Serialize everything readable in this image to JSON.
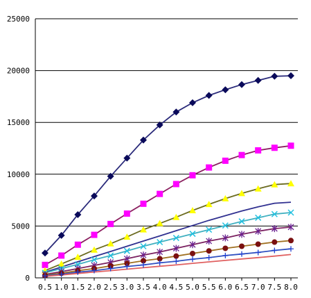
{
  "chart_data": {
    "type": "line",
    "title": "",
    "xlabel": "",
    "ylabel": "",
    "ylim": [
      0,
      25000
    ],
    "grid": "horizontal",
    "legend": "none",
    "x": [
      0.5,
      1.0,
      1.5,
      2.0,
      2.5,
      3.0,
      3.5,
      4.0,
      4.5,
      5.0,
      5.5,
      6.0,
      6.5,
      7.0,
      7.5,
      8.0
    ],
    "x_tick_labels": [
      "0.5",
      "1.0",
      "1.5",
      "2.0",
      "2.5",
      "3.0",
      "3.5",
      "4.0",
      "4.5",
      "5.0",
      "5.5",
      "6.0",
      "6.5",
      "7.0",
      "7.5",
      "8.0"
    ],
    "y_tick_labels": [
      "0",
      "5000",
      "10000",
      "15000",
      "20000",
      "25000"
    ],
    "y_ticks": [
      0,
      5000,
      10000,
      15000,
      20000,
      25000
    ],
    "series": [
      {
        "color": "#2a2a7a",
        "marker": "diamond",
        "marker_color": "#0a0a5a",
        "values": [
          2400,
          4100,
          6100,
          7900,
          9800,
          11550,
          13300,
          14750,
          16000,
          16900,
          17600,
          18150,
          18650,
          19050,
          19450,
          19500
        ]
      },
      {
        "color": "#8b2060",
        "marker": "square",
        "marker_color": "#ff00ff",
        "values": [
          1250,
          2150,
          3200,
          4150,
          5200,
          6200,
          7150,
          8100,
          9050,
          9900,
          10650,
          11300,
          11850,
          12300,
          12550,
          12750
        ]
      },
      {
        "color": "#6b6b20",
        "marker": "triangle",
        "marker_color": "#ffff00",
        "values": [
          700,
          1350,
          2000,
          2700,
          3300,
          3950,
          4650,
          5250,
          5850,
          6500,
          7100,
          7650,
          8150,
          8600,
          9000,
          9100
        ]
      },
      {
        "color": "#303090",
        "marker": "none",
        "marker_color": "#303090",
        "values": [
          550,
          1050,
          1550,
          2050,
          2550,
          3050,
          3550,
          4050,
          4550,
          5050,
          5550,
          6000,
          6450,
          6850,
          7200,
          7300
        ]
      },
      {
        "color": "#40b0c0",
        "marker": "x",
        "marker_color": "#20c0e0",
        "values": [
          480,
          900,
          1300,
          1750,
          2150,
          2600,
          3050,
          3450,
          3850,
          4250,
          4650,
          5050,
          5450,
          5800,
          6150,
          6300
        ]
      },
      {
        "color": "#7a2060",
        "marker": "star",
        "marker_color": "#6a2090",
        "values": [
          330,
          600,
          900,
          1200,
          1500,
          1850,
          2200,
          2500,
          2850,
          3200,
          3550,
          3850,
          4200,
          4500,
          4750,
          4900
        ]
      },
      {
        "color": "#a07020",
        "marker": "circle",
        "marker_color": "#7a1010",
        "values": [
          250,
          450,
          700,
          900,
          1150,
          1400,
          1650,
          1850,
          2100,
          2350,
          2600,
          2850,
          3050,
          3250,
          3450,
          3600
        ]
      },
      {
        "color": "#3050c0",
        "marker": "plus",
        "marker_color": "#2040d0",
        "values": [
          200,
          350,
          550,
          700,
          900,
          1100,
          1250,
          1450,
          1600,
          1800,
          1950,
          2150,
          2300,
          2450,
          2650,
          2800
        ]
      },
      {
        "color": "#e06060",
        "marker": "none",
        "marker_color": "#e06060",
        "values": [
          150,
          280,
          420,
          560,
          700,
          840,
          980,
          1120,
          1250,
          1400,
          1540,
          1680,
          1820,
          1960,
          2100,
          2250
        ]
      }
    ]
  }
}
